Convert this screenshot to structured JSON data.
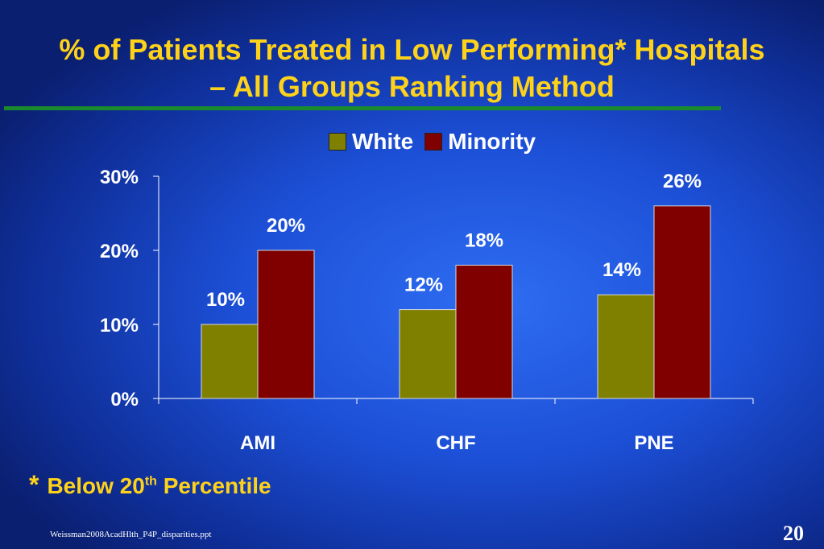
{
  "slide": {
    "title_line1": "% of Patients Treated in Low Performing* Hospitals",
    "title_line2": "– All Groups Ranking Method",
    "footnote_star": "*",
    "footnote_text": "Below 20",
    "footnote_sup": "th",
    "footnote_text2": " Percentile",
    "source": "Weissman2008AcadHlth_P4P_disparities.ppt",
    "page_number": "20"
  },
  "colors": {
    "title": "#ffd21a",
    "white_series": "#808000",
    "minority_series": "#800000",
    "rule": "#1a8a2e"
  },
  "chart_data": {
    "type": "bar",
    "categories": [
      "AMI",
      "CHF",
      "PNE"
    ],
    "series": [
      {
        "name": "White",
        "values": [
          10,
          12,
          14
        ],
        "labels": [
          "10%",
          "12%",
          "14%"
        ]
      },
      {
        "name": "Minority",
        "values": [
          20,
          18,
          26
        ],
        "labels": [
          "20%",
          "18%",
          "26%"
        ]
      }
    ],
    "ylim": [
      0,
      30
    ],
    "yticks": [
      "0%",
      "10%",
      "20%",
      "30%"
    ],
    "legend": "top",
    "grid": false
  }
}
